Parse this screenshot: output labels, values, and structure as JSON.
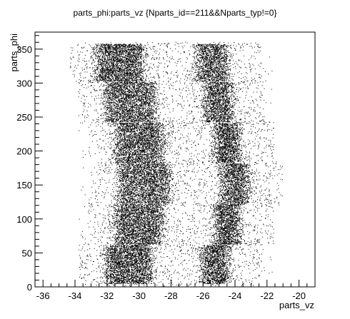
{
  "chart_data": {
    "type": "scatter",
    "title": "parts_phi:parts_vz {Nparts_id==211&&Nparts_typ!=0}",
    "xlabel": "parts_vz",
    "ylabel": "parts_phi",
    "xlim": [
      -36.5,
      -19.0
    ],
    "ylim": [
      0,
      375
    ],
    "x_ticks": [
      {
        "value": -36,
        "label": "-36"
      },
      {
        "value": -34,
        "label": "-34"
      },
      {
        "value": -32,
        "label": "-32"
      },
      {
        "value": -30,
        "label": "-30"
      },
      {
        "value": -28,
        "label": "-28"
      },
      {
        "value": -26,
        "label": "-26"
      },
      {
        "value": -24,
        "label": "-24"
      },
      {
        "value": -22,
        "label": "-22"
      },
      {
        "value": -20,
        "label": "-20"
      }
    ],
    "y_ticks": [
      {
        "value": 0,
        "label": "0"
      },
      {
        "value": 50,
        "label": "50"
      },
      {
        "value": 100,
        "label": "100"
      },
      {
        "value": 150,
        "label": "150"
      },
      {
        "value": 200,
        "label": "200"
      },
      {
        "value": 250,
        "label": "250"
      },
      {
        "value": 300,
        "label": "300"
      },
      {
        "value": 350,
        "label": "350"
      }
    ],
    "grid": false,
    "legend": "none",
    "marker_color": "#000000",
    "clusters": [
      {
        "phi_range": [
          5,
          62
        ],
        "vz_core": [
          -32.0,
          -29.3
        ],
        "vz_core2": [
          -26.0,
          -24.5
        ]
      },
      {
        "phi_range": [
          63,
          122
        ],
        "vz_core": [
          -31.4,
          -28.6
        ],
        "vz_core2": [
          -25.2,
          -23.8
        ]
      },
      {
        "phi_range": [
          123,
          182
        ],
        "vz_core": [
          -31.2,
          -28.2
        ],
        "vz_core2": [
          -24.8,
          -23.2
        ]
      },
      {
        "phi_range": [
          183,
          242
        ],
        "vz_core": [
          -31.4,
          -28.6
        ],
        "vz_core2": [
          -25.2,
          -23.8
        ]
      },
      {
        "phi_range": [
          243,
          302
        ],
        "vz_core": [
          -32.0,
          -29.1
        ],
        "vz_core2": [
          -25.8,
          -24.3
        ]
      },
      {
        "phi_range": [
          303,
          358
        ],
        "vz_core": [
          -32.6,
          -29.8
        ],
        "vz_core2": [
          -26.3,
          -24.6
        ]
      }
    ]
  }
}
